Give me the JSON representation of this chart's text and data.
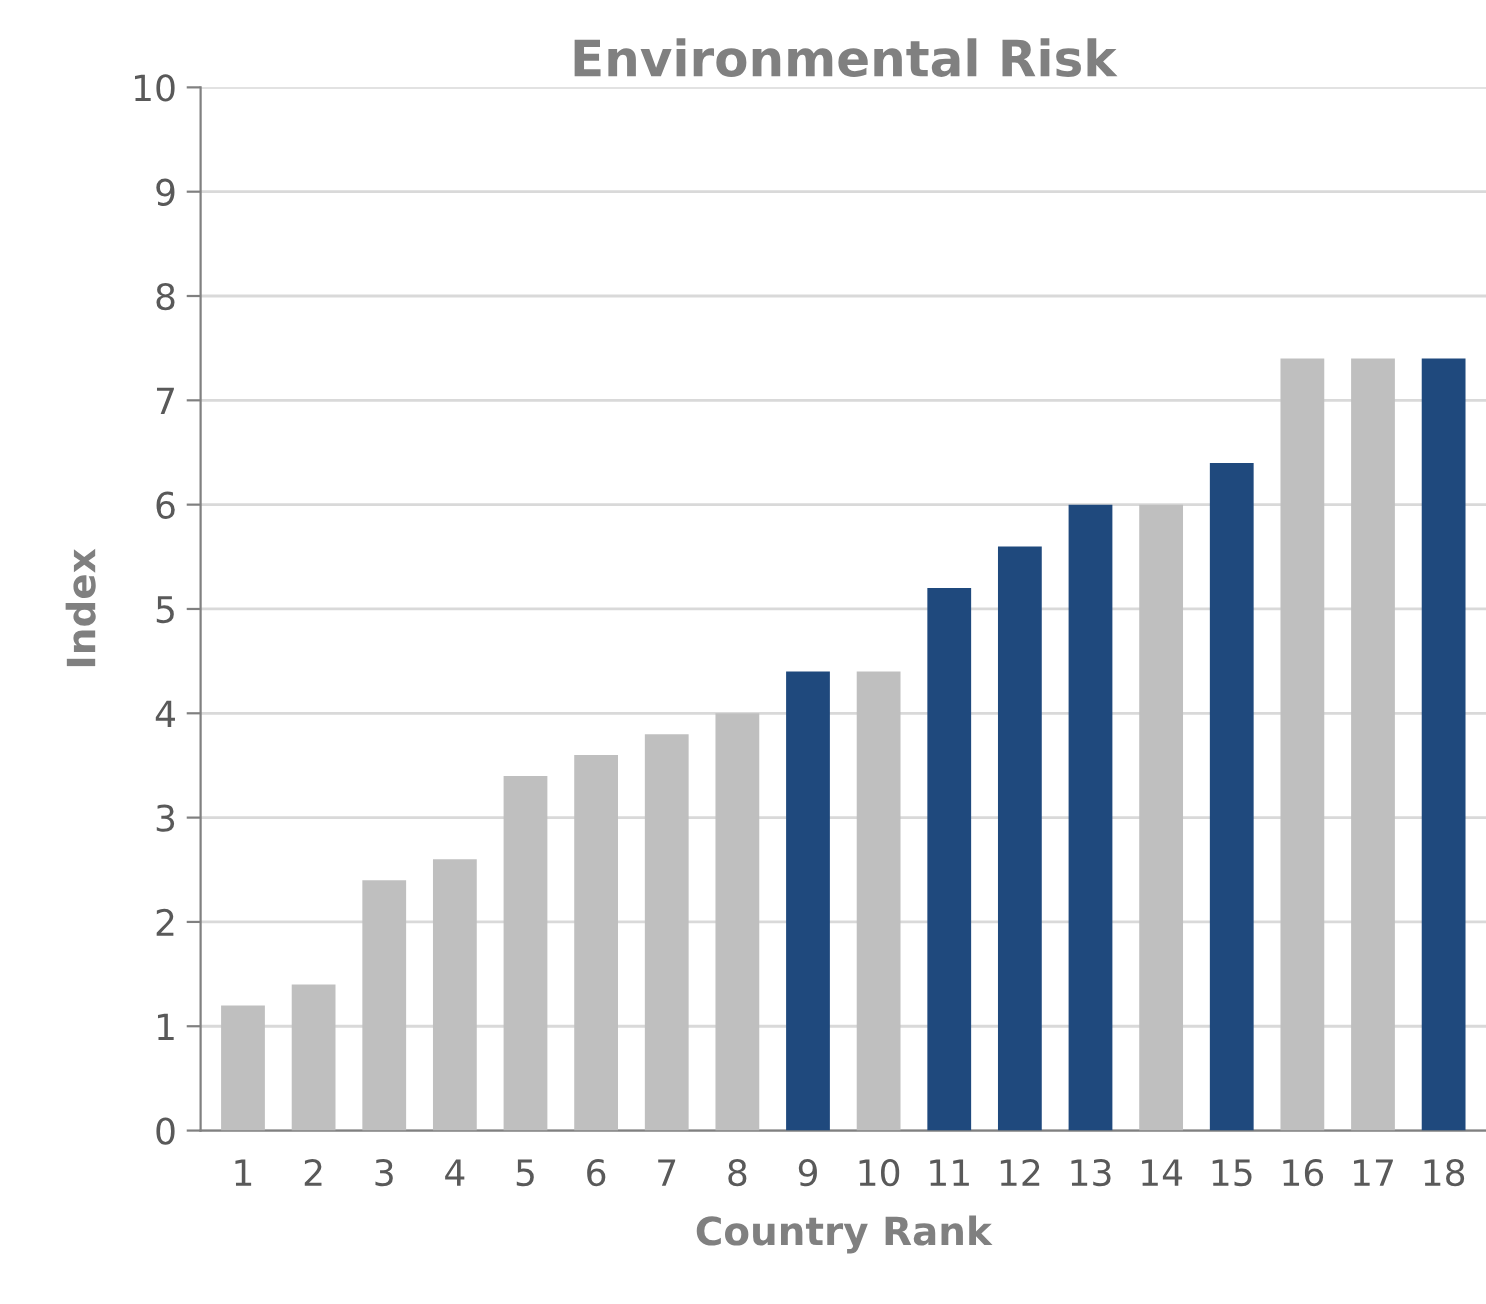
{
  "chart_data": {
    "type": "bar",
    "title": "Environmental Risk",
    "xlabel": "Country Rank",
    "ylabel": "Index",
    "categories": [
      "1",
      "2",
      "3",
      "4",
      "5",
      "6",
      "7",
      "8",
      "9",
      "10",
      "11",
      "12",
      "13",
      "14",
      "15",
      "16",
      "17",
      "18"
    ],
    "values": [
      1.2,
      1.4,
      2.4,
      2.6,
      3.4,
      3.6,
      3.8,
      4.0,
      4.4,
      4.4,
      5.2,
      5.6,
      6.0,
      6.0,
      6.4,
      7.4,
      7.4,
      7.4
    ],
    "colors": [
      "#bfbfbf",
      "#bfbfbf",
      "#bfbfbf",
      "#bfbfbf",
      "#bfbfbf",
      "#bfbfbf",
      "#bfbfbf",
      "#bfbfbf",
      "#1f497d",
      "#bfbfbf",
      "#1f497d",
      "#1f497d",
      "#1f497d",
      "#bfbfbf",
      "#1f497d",
      "#bfbfbf",
      "#bfbfbf",
      "#1f497d"
    ],
    "ylim": [
      0,
      10
    ],
    "yticks": [
      0,
      1,
      2,
      3,
      4,
      5,
      6,
      7,
      8,
      9,
      10
    ],
    "grid": "y",
    "legend": false
  }
}
